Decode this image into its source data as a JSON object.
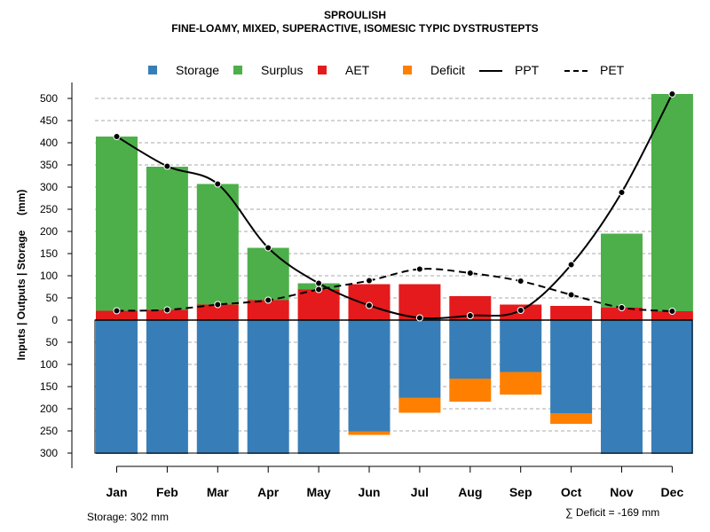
{
  "chart_data": {
    "type": "bar",
    "title": "SPROULISH",
    "subtitle": "FINE-LOAMY, MIXED, SUPERACTIVE, ISOMESIC TYPIC DYSTRUSTEPTS",
    "ylabel": "Inputs | Outputs | Storage     (mm)",
    "ylim": [
      -300,
      520
    ],
    "yticks": [
      -300,
      -250,
      -200,
      -150,
      -100,
      -50,
      0,
      50,
      100,
      150,
      200,
      250,
      300,
      350,
      400,
      450,
      500
    ],
    "ytick_labels": [
      "300",
      "250",
      "200",
      "150",
      "100",
      "50",
      "0",
      "50",
      "100",
      "150",
      "200",
      "250",
      "300",
      "350",
      "400",
      "450",
      "500"
    ],
    "grid": true,
    "categories": [
      "Jan",
      "Feb",
      "Mar",
      "Apr",
      "May",
      "Jun",
      "Jul",
      "Aug",
      "Sep",
      "Oct",
      "Nov",
      "Dec"
    ],
    "series": [
      {
        "name": "Storage",
        "color": "#377EB8",
        "values": [
          302,
          302,
          302,
          302,
          302,
          251,
          175,
          132,
          117,
          210,
          302,
          302
        ]
      },
      {
        "name": "Surplus",
        "color": "#4DAF4A",
        "values": [
          393,
          323,
          272,
          118,
          14,
          0,
          0,
          0,
          0,
          0,
          167,
          490
        ]
      },
      {
        "name": "AET",
        "color": "#E41A1C",
        "values": [
          21,
          23,
          35,
          45,
          69,
          81,
          81,
          54,
          35,
          32,
          28,
          20
        ]
      },
      {
        "name": "Deficit",
        "color": "#FF7F00",
        "values": [
          0,
          0,
          0,
          0,
          0,
          8,
          34,
          52,
          51,
          24,
          0,
          0
        ]
      },
      {
        "name": "PPT",
        "style": "solid",
        "color": "#000000",
        "values": [
          414,
          347,
          307,
          163,
          83,
          33,
          5,
          10,
          22,
          125,
          288,
          510
        ]
      },
      {
        "name": "PET",
        "style": "dashed",
        "color": "#000000",
        "values": [
          21,
          23,
          35,
          45,
          69,
          89,
          115,
          106,
          88,
          57,
          28,
          20
        ]
      }
    ],
    "legend": [
      "Storage",
      "Surplus",
      "AET",
      "Deficit",
      "PPT",
      "PET"
    ],
    "legend_position": "top"
  },
  "footer": {
    "storage": "Storage: 302 mm",
    "deficit": "∑ Deficit = -169 mm"
  }
}
